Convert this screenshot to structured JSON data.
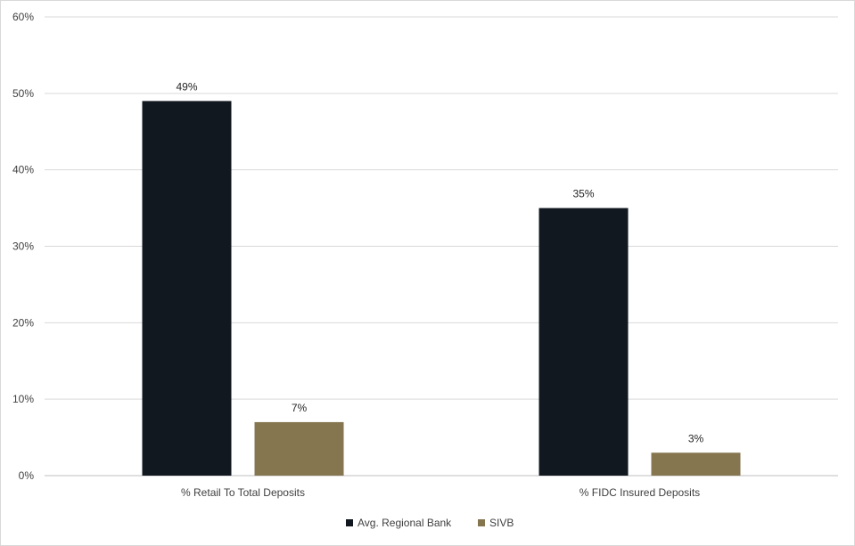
{
  "chart_data": {
    "type": "bar",
    "categories": [
      "% Retail To Total Deposits",
      "% FIDC Insured Deposits"
    ],
    "series": [
      {
        "name": "Avg. Regional Bank",
        "values": [
          49,
          35
        ],
        "labels": [
          "49%",
          "35%"
        ],
        "color": "#111820"
      },
      {
        "name": "SIVB",
        "values": [
          7,
          3
        ],
        "labels": [
          "7%",
          "3%"
        ],
        "color": "#857650"
      }
    ],
    "ylim": [
      0,
      60
    ],
    "yticks": [
      0,
      10,
      20,
      30,
      40,
      50,
      60
    ],
    "ytick_labels": [
      "0%",
      "10%",
      "20%",
      "30%",
      "40%",
      "50%",
      "60%"
    ],
    "grid": true,
    "legend_position": "bottom"
  }
}
